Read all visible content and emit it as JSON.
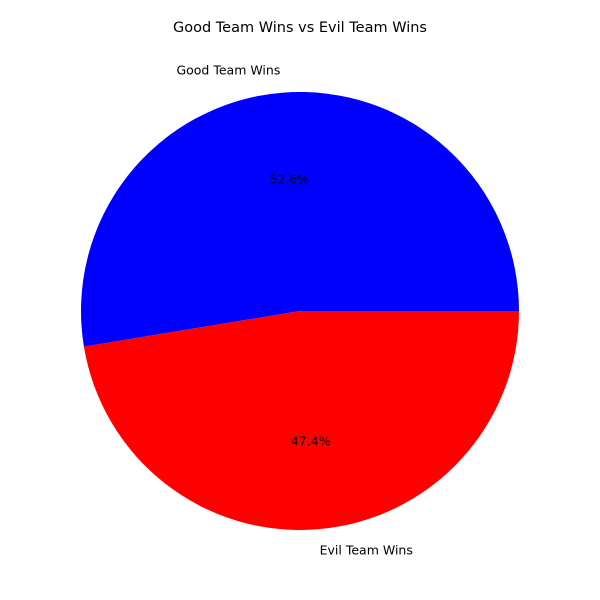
{
  "chart_data": {
    "type": "pie",
    "title": "Good Team Wins vs Evil Team Wins",
    "slices": [
      {
        "label": "Good Team Wins",
        "value": 52.6,
        "pct_label": "52.6%",
        "color": "#0000ff"
      },
      {
        "label": "Evil Team Wins",
        "value": 47.4,
        "pct_label": "47.4%",
        "color": "#ff0000"
      }
    ],
    "start_angle_deg": 0,
    "direction": "counterclockwise",
    "legend": "none"
  }
}
